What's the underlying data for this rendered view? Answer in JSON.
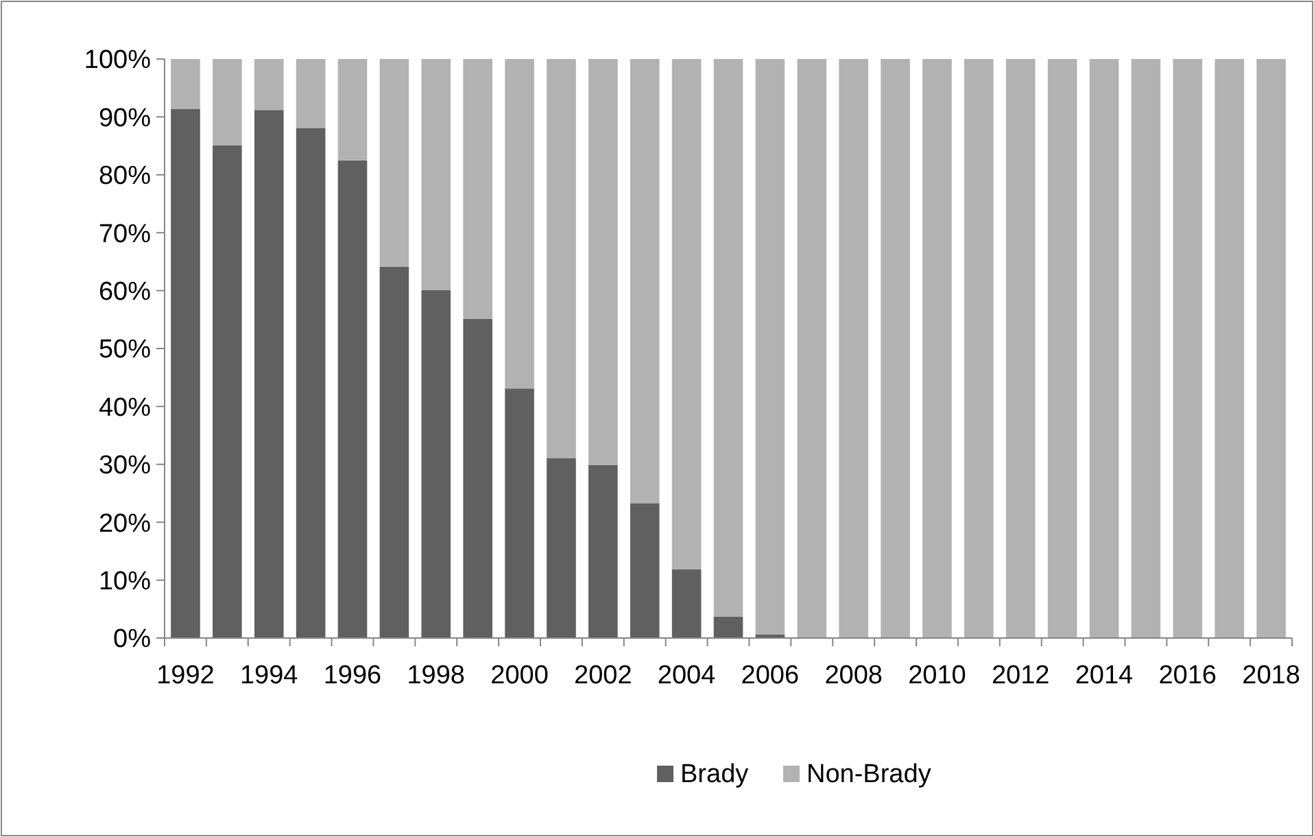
{
  "chart_data": {
    "type": "bar",
    "stacked": true,
    "categories": [
      "1992",
      null,
      "1994",
      null,
      "1996",
      null,
      "1998",
      null,
      "2000",
      null,
      "2002",
      null,
      "2004",
      null,
      "2006",
      null,
      "2008",
      null,
      "2010",
      null,
      "2012",
      null,
      "2014",
      null,
      "2016",
      null,
      "2018"
    ],
    "series": [
      {
        "name": "Brady",
        "color": "#606060",
        "values": [
          91.4,
          85.1,
          91.2,
          88.1,
          82.5,
          64.1,
          60.1,
          55.1,
          43.1,
          31.1,
          29.9,
          23.3,
          11.9,
          3.7,
          0.6,
          0,
          0,
          0,
          0,
          0,
          0,
          0,
          0,
          0,
          0,
          0,
          0
        ]
      },
      {
        "name": "Non-Brady",
        "color": "#b2b2b2",
        "values": [
          8.6,
          14.9,
          8.8,
          11.9,
          17.5,
          35.9,
          39.9,
          44.9,
          56.9,
          68.9,
          70.1,
          76.7,
          88.1,
          96.3,
          99.4,
          100,
          100,
          100,
          100,
          100,
          100,
          100,
          100,
          100,
          100,
          100,
          100
        ]
      }
    ],
    "ylim": [
      0,
      100
    ],
    "yticks": [
      {
        "value": 0,
        "label": "0%"
      },
      {
        "value": 10,
        "label": "10%"
      },
      {
        "value": 20,
        "label": "20%"
      },
      {
        "value": 30,
        "label": "30%"
      },
      {
        "value": 40,
        "label": "40%"
      },
      {
        "value": 50,
        "label": "50%"
      },
      {
        "value": 60,
        "label": "60%"
      },
      {
        "value": 70,
        "label": "70%"
      },
      {
        "value": 80,
        "label": "80%"
      },
      {
        "value": 90,
        "label": "90%"
      },
      {
        "value": 100,
        "label": "100%"
      }
    ],
    "legend": "bottom",
    "grid": false
  }
}
